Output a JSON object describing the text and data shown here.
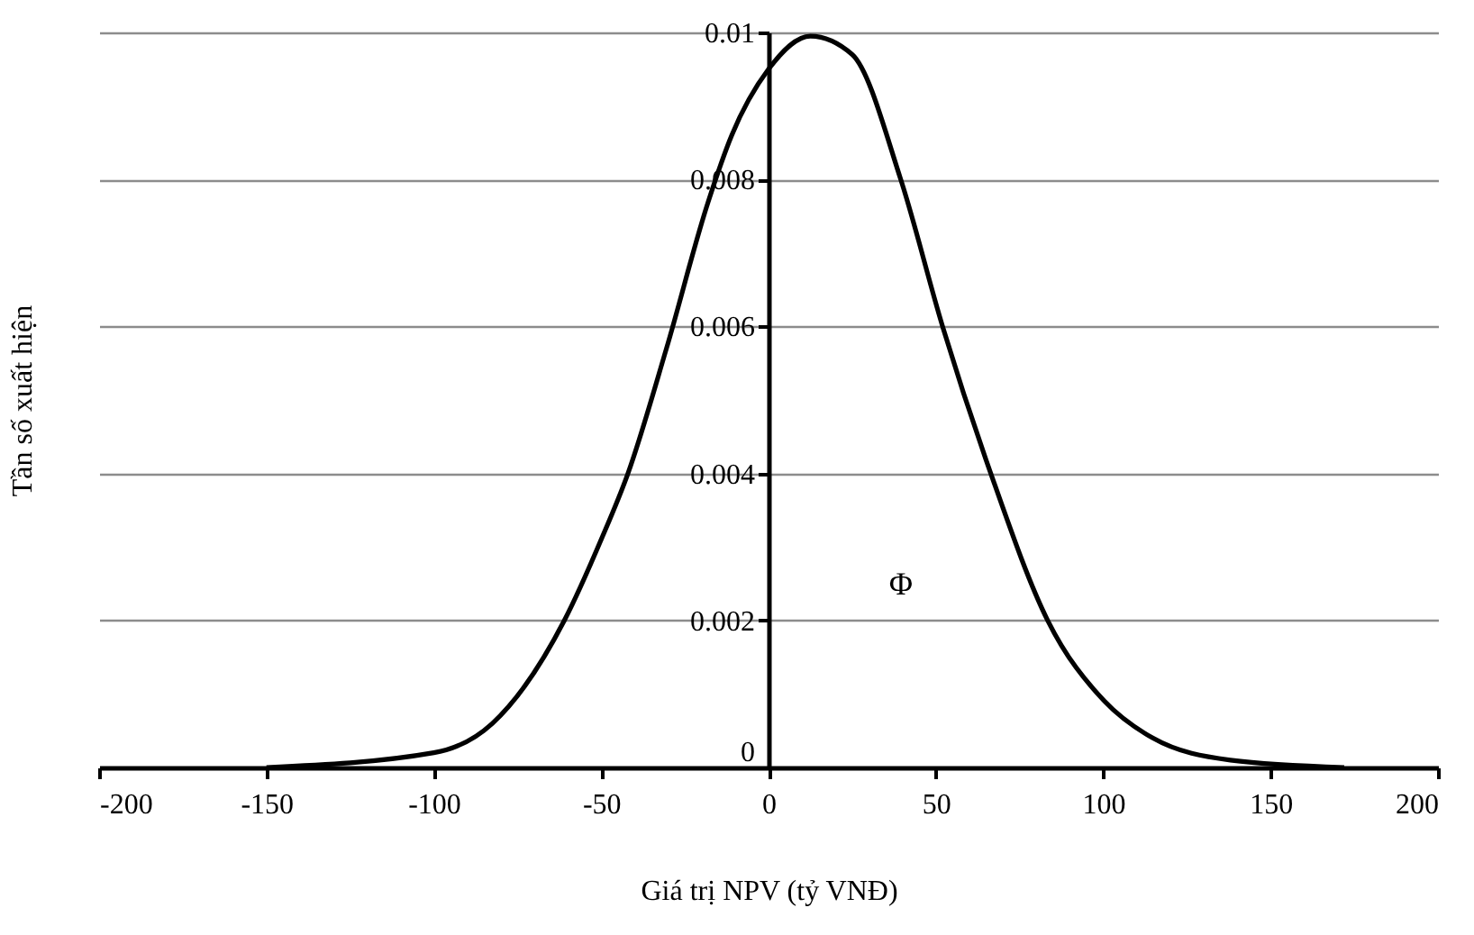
{
  "chart_data": {
    "type": "line",
    "xlabel": "Giá trị NPV (tỷ VNĐ)",
    "ylabel": "Tần số xuất hiện",
    "x": [
      -150,
      -100,
      -82.5,
      -61,
      -50,
      -42,
      -30.5,
      -18,
      -11,
      0,
      12.5,
      25,
      39.5,
      52,
      66.4,
      83.4,
      100.4,
      114.8,
      138,
      172
    ],
    "series": [
      {
        "color": "#000000",
        "values": [
          0,
          0.0002,
          0.0006,
          0.002,
          0.0031,
          0.004,
          0.0057,
          0.0077,
          0.0086,
          0.0095,
          0.00995,
          0.0097,
          0.008,
          0.006,
          0.004,
          0.002,
          0.0009,
          0.0004,
          0.0001,
          0
        ]
      }
    ],
    "xlim": [
      -200,
      200
    ],
    "xticks": [
      -200,
      -150,
      -100,
      -50,
      0,
      50,
      100,
      150,
      200
    ],
    "ylim": [
      0,
      0.01
    ],
    "yticks": [
      0,
      0.002,
      0.004,
      0.006,
      0.008,
      0.01
    ],
    "grid": "y",
    "marker": "none",
    "line_style": "solid",
    "annotations": [
      "Φ"
    ]
  }
}
